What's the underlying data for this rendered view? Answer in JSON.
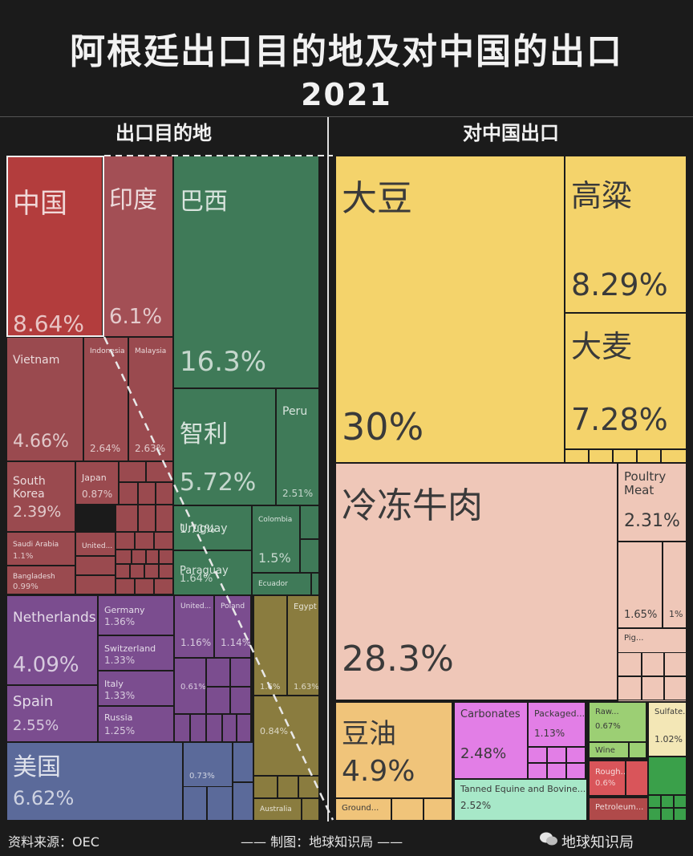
{
  "title": "阿根廷出口目的地及对中国的出口",
  "year": "2021",
  "left_panel_title": "出口目的地",
  "right_panel_title": "对中国出口",
  "source": "资料来源：OEC",
  "credit": "—— 制图：地球知识局 ——",
  "brand": "地球知识局",
  "chart_data": [
    {
      "type": "treemap",
      "title": "出口目的地",
      "items": [
        {
          "label": "中国",
          "value": "8.64%",
          "color": "#b33d3d"
        },
        {
          "label": "印度",
          "value": "6.1%",
          "color": "#a34f55"
        },
        {
          "label": "巴西",
          "value": "16.3%",
          "color": "#3f7a58"
        },
        {
          "label": "Vietnam",
          "value": "4.66%",
          "color": "#9a4a4f"
        },
        {
          "label": "Indonesia",
          "value": "2.64%",
          "color": "#9a4a4f"
        },
        {
          "label": "Malaysia",
          "value": "2.63%",
          "color": "#9a4a4f"
        },
        {
          "label": "智利",
          "value": "5.72%",
          "color": "#3f7a58"
        },
        {
          "label": "Peru",
          "value": "2.51%",
          "color": "#3f7a58"
        },
        {
          "label": "South Korea",
          "value": "2.39%",
          "color": "#9a4a4f"
        },
        {
          "label": "Japan",
          "value": "0.87%",
          "color": "#9a4a4f"
        },
        {
          "label": "Uruguay",
          "value": "1.71%",
          "color": "#3f7a58"
        },
        {
          "label": "Colombia",
          "value": "1.5%",
          "color": "#3f7a58"
        },
        {
          "label": "Saudi Arabia",
          "value": "1.1%",
          "color": "#9a4a4f"
        },
        {
          "label": "United...",
          "value": "",
          "color": "#9a4a4f"
        },
        {
          "label": "Paraguay",
          "value": "1.64%",
          "color": "#3f7a58"
        },
        {
          "label": "Ecuador",
          "value": "",
          "color": "#3f7a58"
        },
        {
          "label": "Bangladesh",
          "value": "0.99%",
          "color": "#9a4a4f"
        },
        {
          "label": "Netherlands",
          "value": "4.09%",
          "color": "#7b4d8f"
        },
        {
          "label": "Germany",
          "value": "1.36%",
          "color": "#7b4d8f"
        },
        {
          "label": "Switzerland",
          "value": "1.33%",
          "color": "#7b4d8f"
        },
        {
          "label": "Italy",
          "value": "1.33%",
          "color": "#7b4d8f"
        },
        {
          "label": "Russia",
          "value": "1.25%",
          "color": "#7b4d8f"
        },
        {
          "label": "Spain",
          "value": "2.55%",
          "color": "#7b4d8f"
        },
        {
          "label": "United...",
          "value": "1.16%",
          "color": "#7b4d8f"
        },
        {
          "label": "Poland",
          "value": "1.14%",
          "color": "#7b4d8f"
        },
        {
          "label": "",
          "value": "0.61%",
          "color": "#7b4d8f"
        },
        {
          "label": "美国",
          "value": "6.62%",
          "color": "#5b6a9a"
        },
        {
          "label": "",
          "value": "0.73%",
          "color": "#5b6a9a"
        },
        {
          "label": "",
          "value": "1.6%",
          "color": "#8a7c3f"
        },
        {
          "label": "Egypt",
          "value": "1.63%",
          "color": "#8a7c3f"
        },
        {
          "label": "",
          "value": "0.84%",
          "color": "#8a7c3f"
        },
        {
          "label": "Australia",
          "value": "",
          "color": "#8a7c3f"
        }
      ]
    },
    {
      "type": "treemap",
      "title": "对中国出口",
      "items": [
        {
          "label": "大豆",
          "value": "30%",
          "color": "#f4d36b"
        },
        {
          "label": "高粱",
          "value": "8.29%",
          "color": "#f4d36b"
        },
        {
          "label": "大麦",
          "value": "7.28%",
          "color": "#f4d36b"
        },
        {
          "label": "冷冻牛肉",
          "value": "28.3%",
          "color": "#efc7b8"
        },
        {
          "label": "Poultry Meat",
          "value": "2.31%",
          "color": "#efc7b8"
        },
        {
          "label": "",
          "value": "1.65%",
          "color": "#efc7b8"
        },
        {
          "label": "",
          "value": "1%",
          "color": "#efc7b8"
        },
        {
          "label": "Pig...",
          "value": "",
          "color": "#efc7b8"
        },
        {
          "label": "豆油",
          "value": "4.9%",
          "color": "#f0c47a"
        },
        {
          "label": "Ground...",
          "value": "",
          "color": "#f0c47a"
        },
        {
          "label": "Carbonates",
          "value": "2.48%",
          "color": "#e27ee6"
        },
        {
          "label": "Packaged...",
          "value": "1.13%",
          "color": "#e27ee6"
        },
        {
          "label": "Tanned Equine and Bovine...",
          "value": "2.52%",
          "color": "#a7e8c8"
        },
        {
          "label": "Raw...",
          "value": "0.67%",
          "color": "#9ccf74"
        },
        {
          "label": "Wine",
          "value": "",
          "color": "#9ccf74"
        },
        {
          "label": "Sulfate...",
          "value": "1.02%",
          "color": "#f3e7b6"
        },
        {
          "label": "Rough...",
          "value": "0.6%",
          "color": "#d9555a"
        },
        {
          "label": "Petroleum...",
          "value": "",
          "color": "#b04a4a"
        }
      ]
    }
  ]
}
